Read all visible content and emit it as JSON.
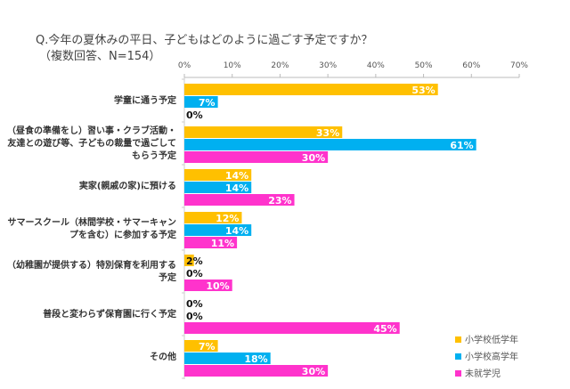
{
  "title": "Q.今年の夏休みの平日、子どもはどのように過ごす予定ですか？",
  "subtitle": "（複数回答、N=154）",
  "chart_data": {
    "type": "bar",
    "orientation": "horizontal",
    "xlim": [
      0,
      70
    ],
    "ticks": [
      "0%",
      "10%",
      "20%",
      "30%",
      "40%",
      "50%",
      "60%",
      "70%"
    ],
    "categories": [
      "学童に通う予定",
      "（昼食の準備をし）習い事・クラブ活動・友達との遊び等、子どもの裁量で過ごしてもらう予定",
      "実家(親戚の家)に預ける",
      "サマースクール（林間学校・サマーキャンプを含む）に参加する予定",
      "（幼稚園が提供する）特別保育を利用する予定",
      "普段と変わらず保育園に行く予定",
      "その他"
    ],
    "series": [
      {
        "name": "小学校低学年",
        "color": "#FFC000",
        "values": [
          53,
          33,
          14,
          12,
          2,
          0,
          7
        ]
      },
      {
        "name": "小学校高学年",
        "color": "#00B0F0",
        "values": [
          7,
          61,
          14,
          14,
          0,
          0,
          18
        ]
      },
      {
        "name": "未就学児",
        "color": "#FF33CC",
        "values": [
          0,
          30,
          23,
          11,
          10,
          45,
          30
        ]
      }
    ],
    "legend": "bottom-right",
    "grid": false
  }
}
